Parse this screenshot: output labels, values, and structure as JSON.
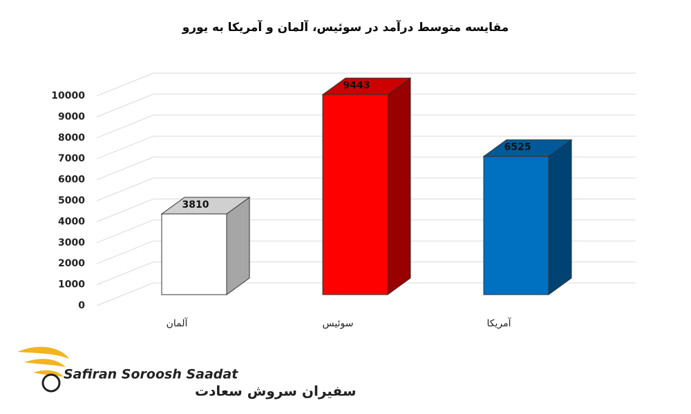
{
  "chart_data": {
    "type": "bar3d",
    "title": "مقایسه متوسط درآمد در سوئیس، آلمان و آمریکا به یورو",
    "categories": [
      "آلمان",
      "سوئیس",
      "آمریکا"
    ],
    "values": [
      3810,
      9443,
      6525
    ],
    "colors": [
      "#ffffff",
      "#ff0000",
      "#0070c0"
    ],
    "ylim": [
      0,
      10000
    ],
    "yticks": [
      0,
      1000,
      2000,
      3000,
      4000,
      5000,
      6000,
      7000,
      8000,
      9000,
      10000
    ],
    "grid": true
  },
  "logo": {
    "latin": "Safiran Soroosh Saadat",
    "persian": "سفیران سروش سعادت"
  }
}
